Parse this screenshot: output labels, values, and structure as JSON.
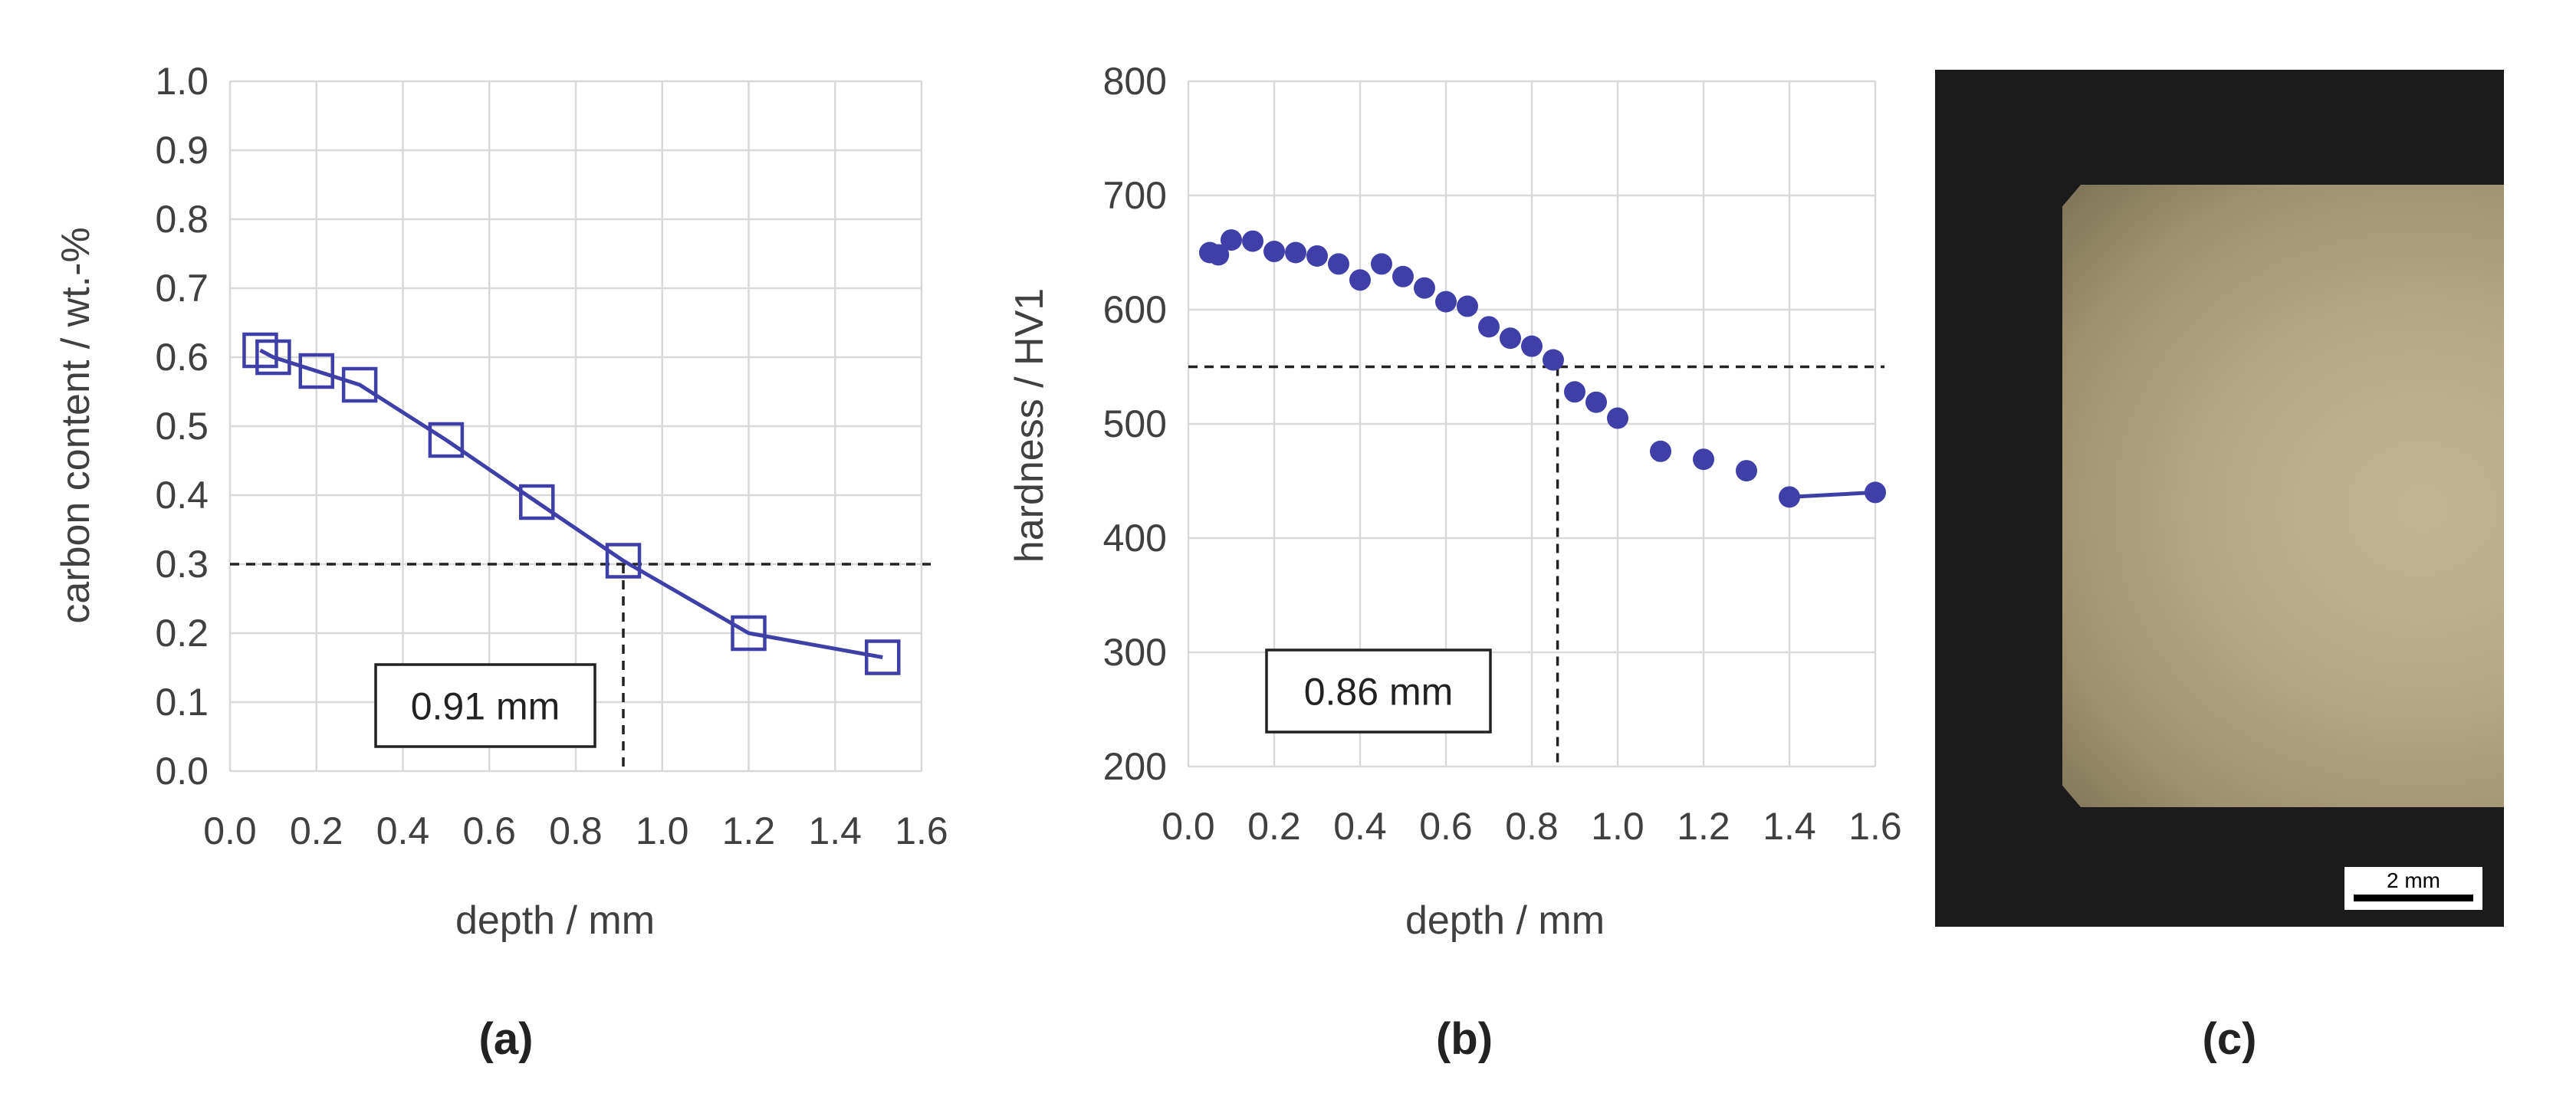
{
  "chart_data": [
    {
      "type": "line",
      "panel_label": "(a)",
      "xlabel": "depth / mm",
      "ylabel": "carbon content / wt.-%",
      "xlim": [
        0.0,
        1.6
      ],
      "ylim": [
        0.0,
        1.0
      ],
      "x_ticks": [
        "0.0",
        "0.2",
        "0.4",
        "0.6",
        "0.8",
        "1.0",
        "1.2",
        "1.4",
        "1.6"
      ],
      "y_ticks": [
        "0.0",
        "0.1",
        "0.2",
        "0.3",
        "0.4",
        "0.5",
        "0.6",
        "0.7",
        "0.8",
        "0.9",
        "1.0"
      ],
      "grid": true,
      "marker": "open-square",
      "color": "#3f3fa8",
      "series": [
        {
          "x": [
            0.07,
            0.1,
            0.2,
            0.3,
            0.5,
            0.71,
            0.91,
            1.2,
            1.51
          ],
          "y": [
            0.61,
            0.6,
            0.58,
            0.56,
            0.48,
            0.39,
            0.305,
            0.2,
            0.165
          ]
        }
      ],
      "threshold": {
        "y": 0.3,
        "x": 0.91
      },
      "annotation": "0.91 mm"
    },
    {
      "type": "scatter",
      "panel_label": "(b)",
      "xlabel": "depth / mm",
      "ylabel": "hardness / HV1",
      "xlim": [
        0.0,
        1.6
      ],
      "ylim": [
        200,
        800
      ],
      "x_ticks": [
        "0.0",
        "0.2",
        "0.4",
        "0.6",
        "0.8",
        "1.0",
        "1.2",
        "1.4",
        "1.6"
      ],
      "y_ticks": [
        "200",
        "300",
        "400",
        "500",
        "600",
        "700",
        "800"
      ],
      "grid": true,
      "marker": "filled-circle",
      "color": "#3f3fa8",
      "series": [
        {
          "x": [
            0.05,
            0.07,
            0.1,
            0.15,
            0.2,
            0.25,
            0.3,
            0.35,
            0.4,
            0.45,
            0.5,
            0.55,
            0.6,
            0.65,
            0.7,
            0.75,
            0.8,
            0.85,
            0.9,
            0.95,
            1.0,
            1.1,
            1.2,
            1.3,
            1.4,
            1.6
          ],
          "y": [
            650,
            648,
            661,
            660,
            651,
            650,
            647,
            640,
            626,
            640,
            629,
            619,
            607,
            603,
            585,
            575,
            568,
            556,
            528,
            519,
            505,
            476,
            469,
            459,
            436,
            440
          ]
        }
      ],
      "threshold": {
        "y": 550,
        "x": 0.86
      },
      "annotation": "0.86 mm"
    }
  ],
  "panel_c": {
    "panel_label": "(c)",
    "scale_bar_label": "2 mm"
  }
}
